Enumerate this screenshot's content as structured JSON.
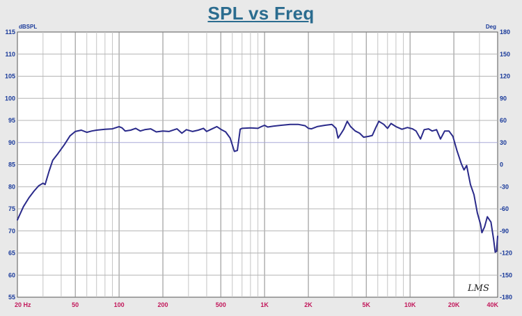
{
  "chart_data": {
    "type": "line",
    "title": "SPL vs Freq",
    "y_unit": "dBSPL",
    "y2_unit": "Deg",
    "x_scale": "log",
    "xlim": [
      20,
      40000
    ],
    "ylim": [
      55,
      115
    ],
    "y2lim": [
      -180,
      180
    ],
    "grid": true,
    "y_ticks": [
      "115",
      "110",
      "105",
      "100",
      "95",
      "90",
      "85",
      "80",
      "75",
      "70",
      "65",
      "60",
      "55"
    ],
    "y2_ticks": [
      "180",
      "150",
      "120",
      "90",
      "60",
      "30",
      "0",
      "-30",
      "-60",
      "-90",
      "-120",
      "-150",
      "-180"
    ],
    "x_ticks": [
      {
        "value": 20,
        "label": "20  Hz"
      },
      {
        "value": 50,
        "label": "50"
      },
      {
        "value": 100,
        "label": "100"
      },
      {
        "value": 200,
        "label": "200"
      },
      {
        "value": 500,
        "label": "500"
      },
      {
        "value": 1000,
        "label": "1K"
      },
      {
        "value": 2000,
        "label": "2K"
      },
      {
        "value": 5000,
        "label": "5K"
      },
      {
        "value": 10000,
        "label": "10K"
      },
      {
        "value": 20000,
        "label": "20K"
      },
      {
        "value": 40000,
        "label": "40K"
      }
    ],
    "series": [
      {
        "color": "#2a2a8a",
        "points": [
          [
            20,
            72.5
          ],
          [
            22,
            75.5
          ],
          [
            24,
            77.5
          ],
          [
            26,
            79
          ],
          [
            28,
            80.2
          ],
          [
            30,
            80.8
          ],
          [
            31,
            80.5
          ],
          [
            33,
            83.5
          ],
          [
            35,
            86
          ],
          [
            38,
            87.5
          ],
          [
            42,
            89.5
          ],
          [
            46,
            91.5
          ],
          [
            50,
            92.5
          ],
          [
            55,
            92.8
          ],
          [
            60,
            92.3
          ],
          [
            65,
            92.6
          ],
          [
            70,
            92.8
          ],
          [
            80,
            93
          ],
          [
            90,
            93.1
          ],
          [
            100,
            93.6
          ],
          [
            105,
            93.3
          ],
          [
            110,
            92.6
          ],
          [
            120,
            92.8
          ],
          [
            130,
            93.2
          ],
          [
            140,
            92.6
          ],
          [
            150,
            92.9
          ],
          [
            165,
            93.1
          ],
          [
            180,
            92.4
          ],
          [
            200,
            92.6
          ],
          [
            220,
            92.5
          ],
          [
            250,
            93.1
          ],
          [
            270,
            92.1
          ],
          [
            290,
            92.9
          ],
          [
            320,
            92.5
          ],
          [
            350,
            92.8
          ],
          [
            380,
            93.2
          ],
          [
            400,
            92.5
          ],
          [
            430,
            93
          ],
          [
            470,
            93.6
          ],
          [
            500,
            93
          ],
          [
            540,
            92.4
          ],
          [
            580,
            91
          ],
          [
            620,
            88
          ],
          [
            650,
            88.2
          ],
          [
            680,
            93
          ],
          [
            700,
            93.2
          ],
          [
            800,
            93.3
          ],
          [
            900,
            93.2
          ],
          [
            950,
            93.6
          ],
          [
            1000,
            93.9
          ],
          [
            1050,
            93.5
          ],
          [
            1150,
            93.7
          ],
          [
            1300,
            93.9
          ],
          [
            1500,
            94.1
          ],
          [
            1700,
            94.1
          ],
          [
            1900,
            93.8
          ],
          [
            2000,
            93.2
          ],
          [
            2100,
            93.1
          ],
          [
            2300,
            93.6
          ],
          [
            2600,
            93.9
          ],
          [
            2900,
            94.1
          ],
          [
            3100,
            93.2
          ],
          [
            3200,
            91
          ],
          [
            3350,
            92
          ],
          [
            3500,
            93
          ],
          [
            3700,
            94.8
          ],
          [
            3900,
            93.6
          ],
          [
            4200,
            92.6
          ],
          [
            4500,
            92.1
          ],
          [
            4800,
            91.2
          ],
          [
            5200,
            91.4
          ],
          [
            5500,
            91.6
          ],
          [
            5800,
            93.3
          ],
          [
            6100,
            94.8
          ],
          [
            6600,
            94.1
          ],
          [
            7000,
            93.2
          ],
          [
            7400,
            94.3
          ],
          [
            8000,
            93.6
          ],
          [
            8800,
            93
          ],
          [
            9600,
            93.4
          ],
          [
            10400,
            93.1
          ],
          [
            11000,
            92.6
          ],
          [
            11800,
            90.8
          ],
          [
            12500,
            92.9
          ],
          [
            13400,
            93.1
          ],
          [
            14200,
            92.6
          ],
          [
            15200,
            92.9
          ],
          [
            16200,
            90.8
          ],
          [
            17300,
            92.6
          ],
          [
            18500,
            92.6
          ],
          [
            19700,
            91.4
          ],
          [
            21000,
            88.2
          ],
          [
            22500,
            85.2
          ],
          [
            23500,
            83.8
          ],
          [
            24500,
            84.8
          ],
          [
            26000,
            80.5
          ],
          [
            27500,
            78.2
          ],
          [
            29000,
            74.1
          ],
          [
            30500,
            71.5
          ],
          [
            31200,
            69.6
          ],
          [
            32500,
            70.9
          ],
          [
            34000,
            73.2
          ],
          [
            36000,
            72
          ],
          [
            37500,
            68.2
          ],
          [
            38500,
            65.2
          ],
          [
            39300,
            65.4
          ],
          [
            40000,
            68.8
          ]
        ]
      }
    ]
  },
  "logo": {
    "text": "LMS"
  }
}
